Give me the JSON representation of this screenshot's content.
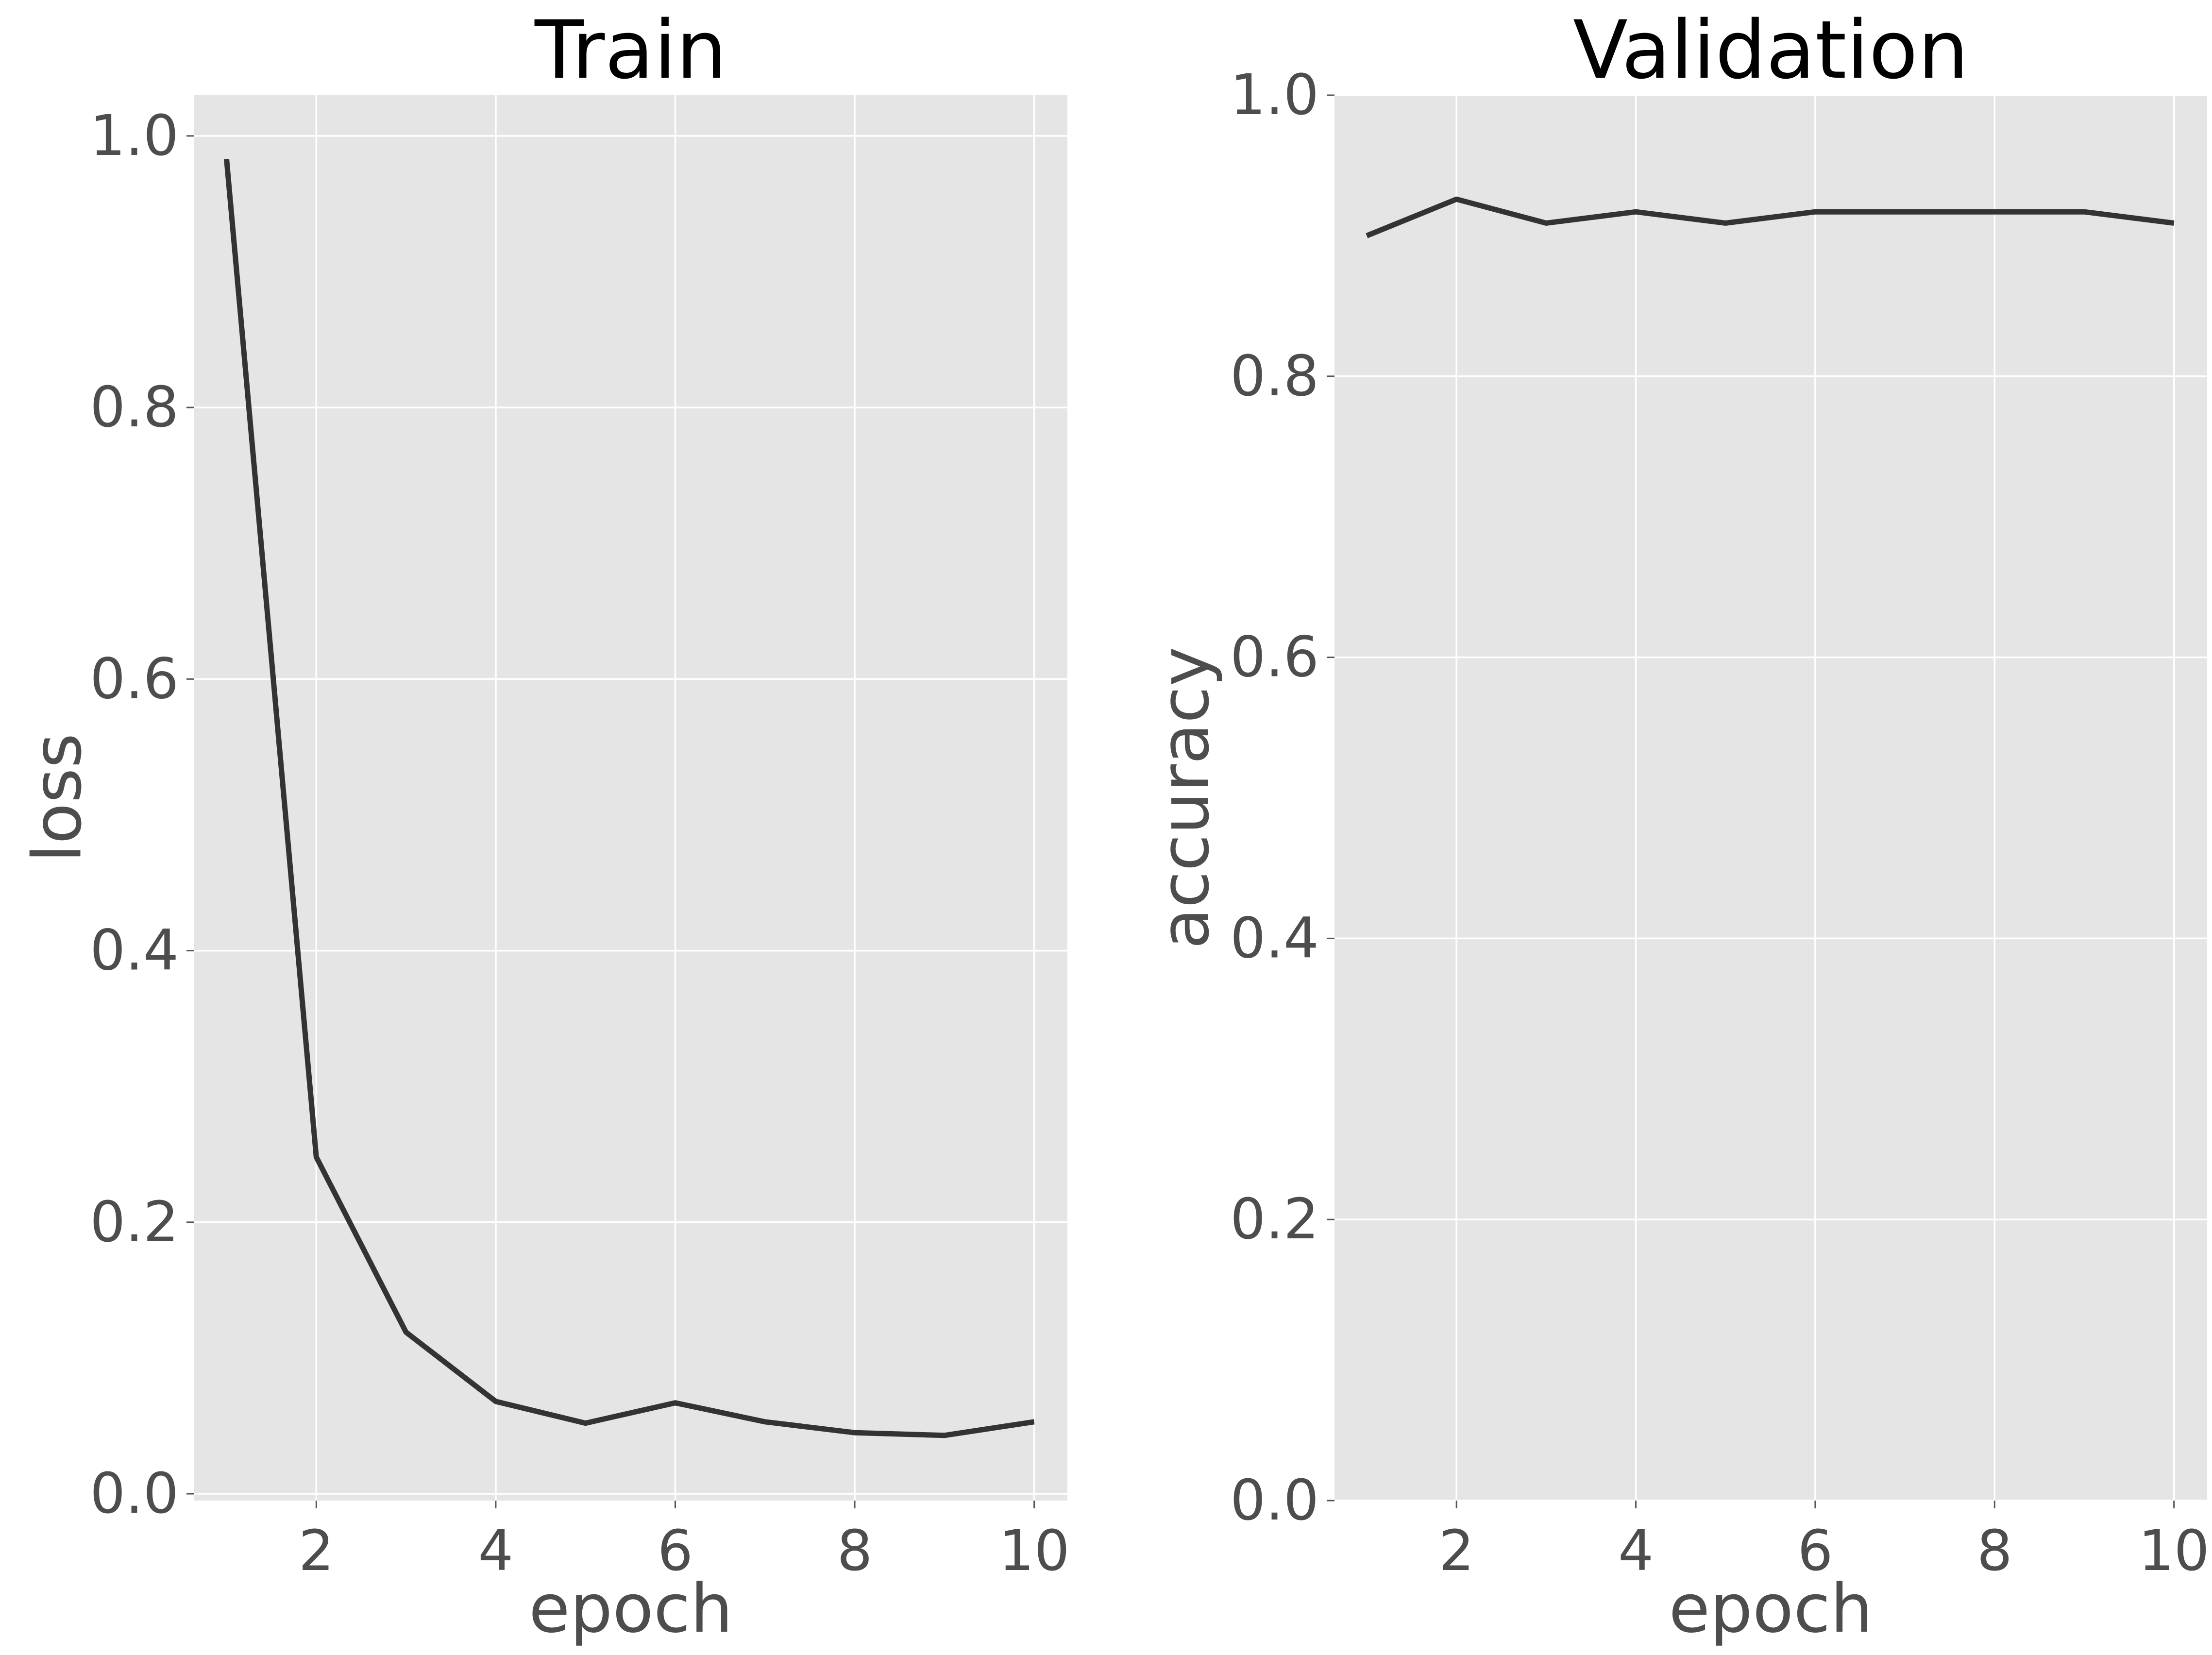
{
  "chart_data": [
    {
      "type": "line",
      "title": "Train",
      "xlabel": "epoch",
      "ylabel": "loss",
      "xlim": [
        0.64,
        10.37
      ],
      "ylim": [
        -0.005,
        1.03
      ],
      "xticks": [
        2,
        4,
        6,
        8,
        10
      ],
      "yticks": [
        0.0,
        0.2,
        0.4,
        0.6,
        0.8,
        1.0
      ],
      "xtick_labels": [
        "2",
        "4",
        "6",
        "8",
        "10"
      ],
      "ytick_labels": [
        "0.0",
        "0.2",
        "0.4",
        "0.6",
        "0.8",
        "1.0"
      ],
      "grid": true,
      "line_color": "#333333",
      "background_color": "#e5e5e5",
      "series": [
        {
          "x": [
            1,
            2,
            3,
            4,
            5,
            6,
            7,
            8,
            9,
            10
          ],
          "values": [
            0.983,
            0.248,
            0.119,
            0.068,
            0.052,
            0.067,
            0.053,
            0.045,
            0.043,
            0.053
          ]
        }
      ]
    },
    {
      "type": "line",
      "title": "Validation",
      "xlabel": "epoch",
      "ylabel": "accuracy",
      "xlim": [
        0.64,
        10.37
      ],
      "ylim": [
        0.0,
        1.0
      ],
      "xticks": [
        2,
        4,
        6,
        8,
        10
      ],
      "yticks": [
        0.0,
        0.2,
        0.4,
        0.6,
        0.8,
        1.0
      ],
      "xtick_labels": [
        "2",
        "4",
        "6",
        "8",
        "10"
      ],
      "ytick_labels": [
        "0.0",
        "0.2",
        "0.4",
        "0.6",
        "0.8",
        "1.0"
      ],
      "grid": true,
      "line_color": "#333333",
      "background_color": "#e5e5e5",
      "series": [
        {
          "x": [
            1,
            2,
            3,
            4,
            5,
            6,
            7,
            8,
            9,
            10
          ],
          "values": [
            0.9,
            0.926,
            0.909,
            0.917,
            0.909,
            0.917,
            0.917,
            0.917,
            0.917,
            0.909
          ]
        }
      ]
    }
  ]
}
